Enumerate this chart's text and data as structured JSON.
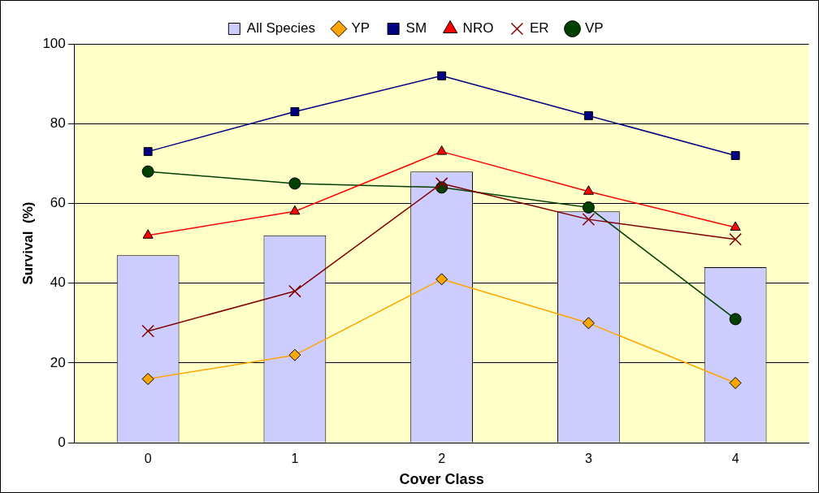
{
  "chart_data": {
    "type": "bar",
    "xlabel": "Cover Class",
    "ylabel": "Survival  (%)",
    "categories": [
      "0",
      "1",
      "2",
      "3",
      "4"
    ],
    "series": [
      {
        "name": "All Species",
        "color": "#ccccff",
        "values": [
          47,
          52,
          68,
          58,
          44
        ]
      },
      {
        "name": "YP",
        "type": "line",
        "color": "#ffa500",
        "marker": "diamond",
        "values": [
          16,
          22,
          41,
          30,
          15
        ]
      },
      {
        "name": "SM",
        "type": "line",
        "color": "#000080",
        "marker": "square",
        "values": [
          73,
          83,
          92,
          82,
          72
        ]
      },
      {
        "name": "NRO",
        "type": "line",
        "color": "#ff0000",
        "marker": "triangle",
        "values": [
          52,
          58,
          73,
          63,
          54
        ]
      },
      {
        "name": "ER",
        "type": "line",
        "color": "#800000",
        "marker": "cross",
        "values": [
          28,
          38,
          65,
          56,
          51
        ]
      },
      {
        "name": "VP",
        "type": "line",
        "color": "#004000",
        "marker": "circle",
        "values": [
          68,
          65,
          64,
          59,
          31
        ]
      }
    ],
    "ylim": [
      0,
      100
    ],
    "yticks": [
      0,
      20,
      40,
      60,
      80,
      100
    ],
    "grid": "y",
    "legend": "top"
  }
}
